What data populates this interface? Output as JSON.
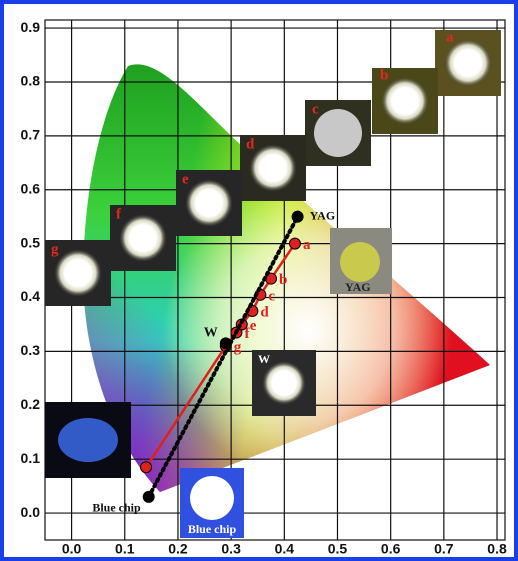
{
  "chart_data": {
    "type": "line",
    "xlim": [
      -0.05,
      0.815
    ],
    "ylim": [
      -0.05,
      0.915
    ],
    "xticks": [
      {
        "value": 0,
        "label": "0.0"
      },
      {
        "value": 0.1,
        "label": "0.1"
      },
      {
        "value": 0.2,
        "label": "0.2"
      },
      {
        "value": 0.3,
        "label": "0.3"
      },
      {
        "value": 0.4,
        "label": "0.4"
      },
      {
        "value": 0.5,
        "label": "0.5"
      },
      {
        "value": 0.6,
        "label": "0.6"
      },
      {
        "value": 0.7,
        "label": "0.7"
      },
      {
        "value": 0.8,
        "label": "0.8"
      }
    ],
    "yticks": [
      {
        "value": 0,
        "label": "0.0"
      },
      {
        "value": 0.1,
        "label": "0.1"
      },
      {
        "value": 0.2,
        "label": "0.2"
      },
      {
        "value": 0.3,
        "label": "0.3"
      },
      {
        "value": 0.4,
        "label": "0.4"
      },
      {
        "value": 0.5,
        "label": "0.5"
      },
      {
        "value": 0.6,
        "label": "0.6"
      },
      {
        "value": 0.7,
        "label": "0.7"
      },
      {
        "value": 0.8,
        "label": "0.8"
      },
      {
        "value": 0.9,
        "label": "0.9"
      }
    ],
    "grid": true,
    "series": [
      {
        "color": "#e0201c",
        "dash": false,
        "x": [
          0.14,
          0.29,
          0.31,
          0.32,
          0.34,
          0.355,
          0.375,
          0.42
        ],
        "values": [
          0.085,
          0.31,
          0.335,
          0.35,
          0.375,
          0.405,
          0.435,
          0.5
        ],
        "labels": [
          null,
          "g",
          "f",
          "e",
          "d",
          "c",
          "b",
          "a"
        ]
      },
      {
        "color": "#000000",
        "dash": true,
        "x": [
          0.145,
          0.425
        ],
        "values": [
          0.03,
          0.55
        ],
        "labels": [
          "Blue chip",
          "YAG"
        ]
      },
      {
        "color": "#000000",
        "dash": false,
        "x": [
          0.29
        ],
        "values": [
          0.315
        ],
        "labels": [
          "W"
        ]
      }
    ]
  }
}
